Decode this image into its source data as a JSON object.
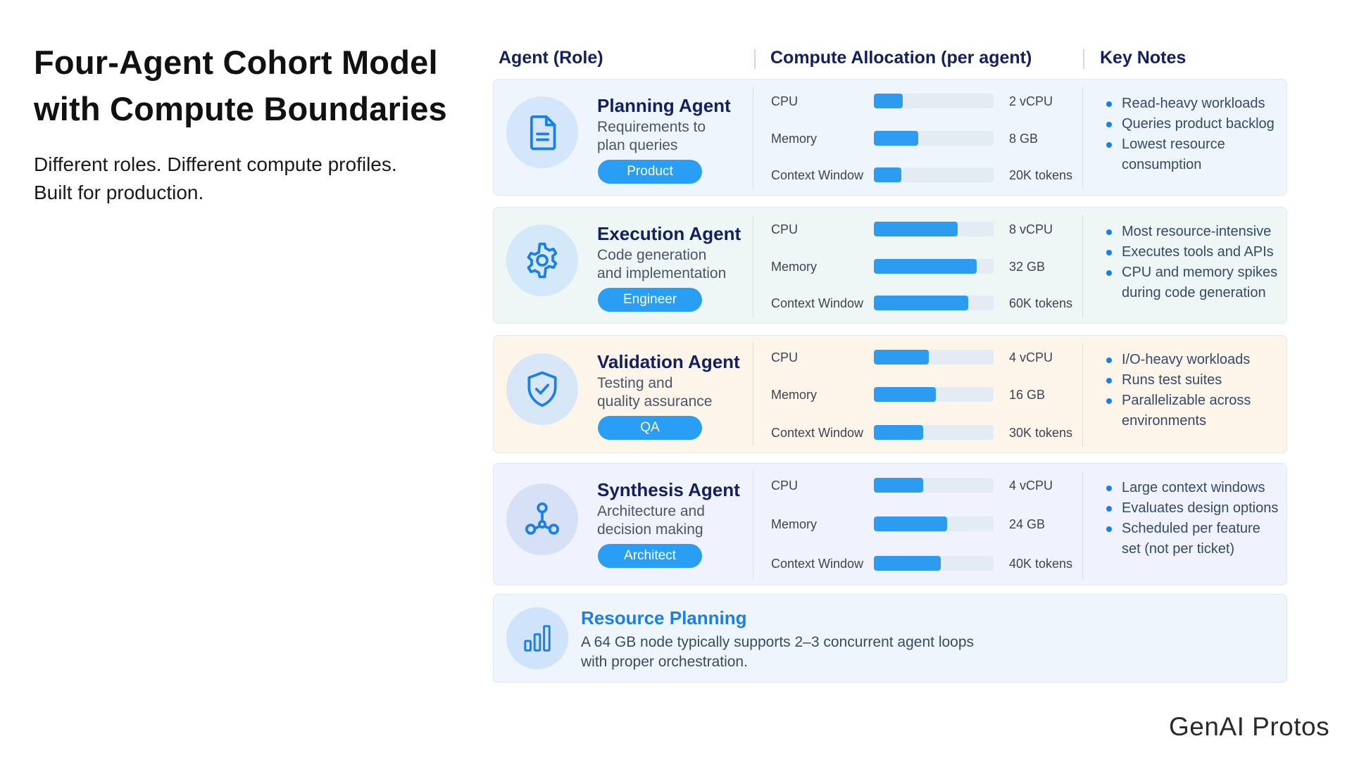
{
  "title_line1": "Four-Agent Cohort Model",
  "title_line2": "with Compute Boundaries",
  "subtitle_line1": "Different roles. Different compute profiles.",
  "subtitle_line2": "Built for production.",
  "headers": {
    "agent": "Agent (Role)",
    "compute": "Compute Allocation (per agent)",
    "notes": "Key Notes"
  },
  "metric_labels": {
    "cpu": "CPU",
    "memory": "Memory",
    "context": "Context Window"
  },
  "agents": [
    {
      "name": "Planning Agent",
      "desc_line1": "Requirements to",
      "desc_line2": "plan queries",
      "badge": "Product",
      "icon": "document-icon",
      "card_bg": "#eef5fd",
      "avatar_bg": "#d3e6fb",
      "cpu": {
        "value": "2 vCPU",
        "fill": 0.24
      },
      "memory": {
        "value": "8 GB",
        "fill": 0.37
      },
      "context": {
        "value": "20K tokens",
        "fill": 0.23
      },
      "notes": [
        "Read-heavy workloads",
        "Queries product backlog",
        "Lowest resource consumption"
      ]
    },
    {
      "name": "Execution Agent",
      "desc_line1": "Code generation",
      "desc_line2": "and implementation",
      "badge": "Engineer",
      "icon": "gear-icon",
      "card_bg": "#eef7f5",
      "avatar_bg": "#d3e8f8",
      "cpu": {
        "value": "8 vCPU",
        "fill": 0.7
      },
      "memory": {
        "value": "32 GB",
        "fill": 0.86
      },
      "context": {
        "value": "60K tokens",
        "fill": 0.79
      },
      "notes": [
        "Most resource-intensive",
        "Executes tools and APIs",
        "CPU and memory spikes during code generation"
      ]
    },
    {
      "name": "Validation Agent",
      "desc_line1": "Testing and",
      "desc_line2": "quality assurance",
      "badge": "QA",
      "icon": "shield-check-icon",
      "card_bg": "#fdf4ea",
      "avatar_bg": "#d8e7f8",
      "cpu": {
        "value": "4 vCPU",
        "fill": 0.46
      },
      "memory": {
        "value": "16 GB",
        "fill": 0.52
      },
      "context": {
        "value": "30K tokens",
        "fill": 0.41
      },
      "notes": [
        "I/O-heavy workloads",
        "Runs test suites",
        "Parallelizable across environments"
      ]
    },
    {
      "name": "Synthesis Agent",
      "desc_line1": "Architecture and",
      "desc_line2": "decision making",
      "badge": "Architect",
      "icon": "network-nodes-icon",
      "card_bg": "#f0f3fd",
      "avatar_bg": "#d6e1f8",
      "cpu": {
        "value": "4 vCPU",
        "fill": 0.41
      },
      "memory": {
        "value": "24 GB",
        "fill": 0.61
      },
      "context": {
        "value": "40K tokens",
        "fill": 0.56
      },
      "notes": [
        "Large context windows",
        "Evaluates design options",
        "Scheduled per feature set (not per ticket)"
      ]
    }
  ],
  "resource_planning": {
    "title": "Resource Planning",
    "text_line1": "A 64 GB node typically supports 2–3 concurrent agent loops",
    "text_line2": "with proper orchestration.",
    "icon": "bar-chart-icon"
  },
  "brand": "GenAI Protos",
  "colors": {
    "accent": "#2a9df4",
    "heading": "#12205f",
    "link_blue": "#1d7fe3"
  }
}
